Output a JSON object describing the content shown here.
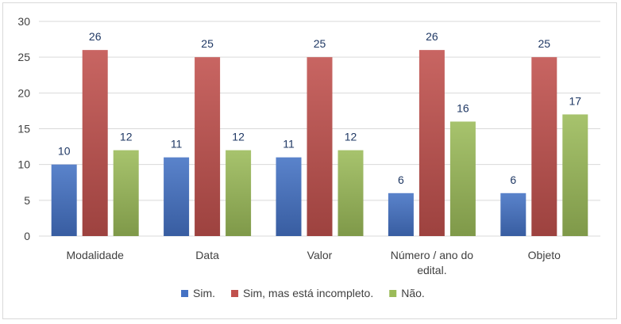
{
  "chart_data": {
    "type": "bar",
    "categories": [
      [
        "Modalidade"
      ],
      [
        "Data"
      ],
      [
        "Valor"
      ],
      [
        "Número / ano do",
        "edital."
      ],
      [
        "Objeto"
      ]
    ],
    "series": [
      {
        "name": "Sim.",
        "values": [
          10,
          11,
          11,
          6,
          6
        ],
        "color": "#4472c4"
      },
      {
        "name": "Sim, mas está incompleto.",
        "values": [
          26,
          25,
          25,
          26,
          25
        ],
        "color": "#c0504d"
      },
      {
        "name": "Não.",
        "values": [
          12,
          12,
          12,
          16,
          17
        ],
        "color": "#9bbb59"
      }
    ],
    "yticks": [
      0,
      5,
      10,
      15,
      20,
      25,
      30
    ],
    "ylim": [
      0,
      30
    ],
    "grid": true,
    "legend_position": "bottom",
    "title": "",
    "xlabel": "",
    "ylabel": ""
  }
}
